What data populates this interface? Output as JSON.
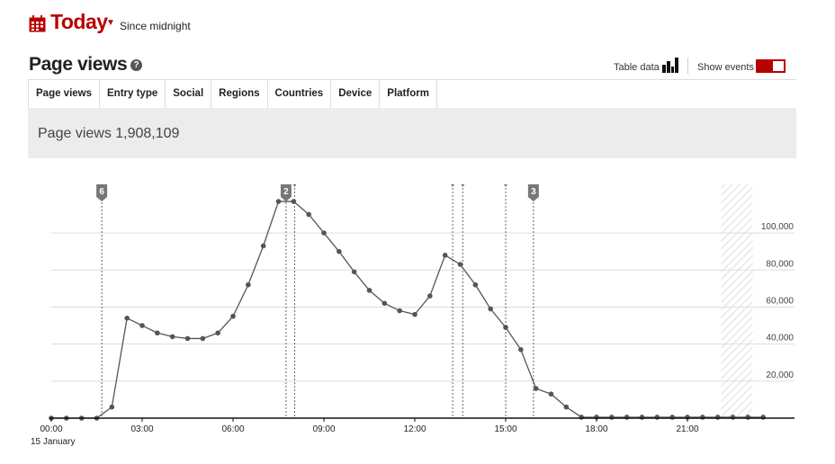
{
  "header": {
    "title": "Today",
    "period": "Since midnight"
  },
  "section": {
    "title": "Page views",
    "help": "?",
    "table_data_label": "Table data",
    "show_events_label": "Show events",
    "show_events_on": true
  },
  "tabs": [
    {
      "label": "Page views",
      "active": true
    },
    {
      "label": "Entry type",
      "active": false
    },
    {
      "label": "Social",
      "active": false
    },
    {
      "label": "Regions",
      "active": false
    },
    {
      "label": "Countries",
      "active": false
    },
    {
      "label": "Device",
      "active": false
    },
    {
      "label": "Platform",
      "active": false
    }
  ],
  "summary": {
    "text": "Page views 1,908,109"
  },
  "colors": {
    "brand": "#b80000",
    "line": "#555555",
    "grid": "#dddddd",
    "event_marker": "#777777"
  },
  "chart_data": {
    "type": "line",
    "date_label": "15 January",
    "x_ticks": [
      "00:00",
      "03:00",
      "06:00",
      "09:00",
      "12:00",
      "15:00",
      "18:00",
      "21:00"
    ],
    "y_ticks": [
      "20,000",
      "40,000",
      "60,000",
      "80,000",
      "100,000"
    ],
    "y_tick_values": [
      20000,
      40000,
      60000,
      80000,
      100000
    ],
    "ylim": [
      0,
      118000
    ],
    "xlim_hours": [
      0,
      24
    ],
    "interval_minutes": 30,
    "series": [
      {
        "values": [
          0,
          0,
          0,
          0,
          6000,
          54000,
          50000,
          46000,
          44000,
          43000,
          43000,
          46000,
          55000,
          72000,
          93000,
          117000,
          117000,
          110000,
          100000,
          90000,
          79000,
          69000,
          62000,
          58000,
          56000,
          66000,
          88000,
          83000,
          72000,
          59000,
          49000,
          37000,
          16000,
          13000,
          6000,
          500,
          500,
          500,
          500,
          500,
          500,
          500,
          500,
          500,
          500,
          500,
          500,
          500
        ]
      }
    ],
    "events": [
      {
        "time": "01:40",
        "label": "6"
      },
      {
        "time": "07:45",
        "label": "2"
      },
      {
        "time": "08:02",
        "label": ""
      },
      {
        "time": "13:15",
        "label": ""
      },
      {
        "time": "13:35",
        "label": ""
      },
      {
        "time": "15:00",
        "label": ""
      },
      {
        "time": "15:55",
        "label": "3"
      }
    ],
    "incomplete_from": "22:30"
  }
}
